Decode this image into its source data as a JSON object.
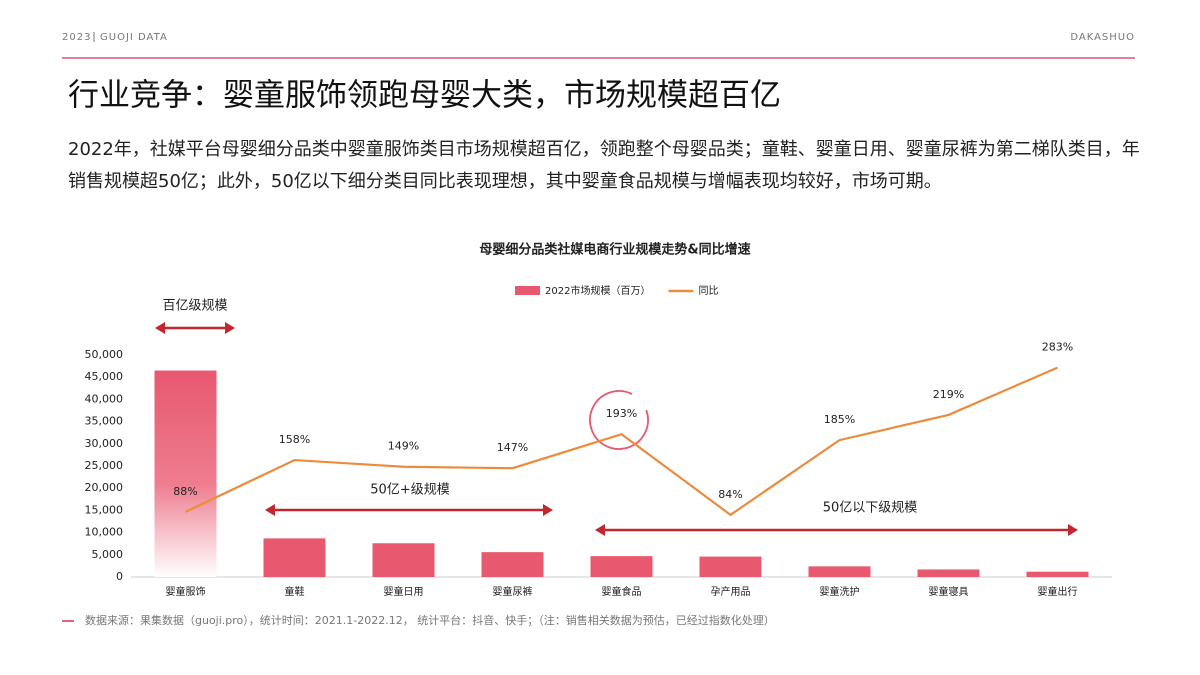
{
  "header": {
    "year": "2023",
    "brand": "GUOJI DATA",
    "author": "DAKASHUO"
  },
  "title": "行业竞争：婴童服饰领跑母婴大类，市场规模超百亿",
  "description": "2022年，社媒平台母婴细分品类中婴童服饰类目市场规模超百亿，领跑整个母婴品类；童鞋、婴童日用、婴童尿裤为第二梯队类目，年销售规模超50亿；此外，50亿以下细分类目同比表现理想，其中婴童食品规模与增幅表现均较好，市场可期。",
  "chart_data": {
    "type": "bar-line",
    "title": "母婴细分品类社媒电商行业规模走势&同比增速",
    "categories": [
      "婴童服饰",
      "童鞋",
      "婴童日用",
      "婴童尿裤",
      "婴童食品",
      "孕产用品",
      "婴童洗护",
      "婴童寝具",
      "婴童出行"
    ],
    "series": [
      {
        "name": "2022市场规模（百万）",
        "type": "bar",
        "color": "#e8586e",
        "values": [
          46500,
          8700,
          7600,
          5600,
          4700,
          4600,
          2400,
          1700,
          1200
        ]
      },
      {
        "name": "同比",
        "type": "line",
        "axis": "y2",
        "color": "#ed8b3c",
        "values": [
          88,
          158,
          149,
          147,
          193,
          84,
          185,
          219,
          283
        ],
        "value_labels": [
          "88%",
          "158%",
          "149%",
          "147%",
          "193%",
          "84%",
          "185%",
          "219%",
          "283%"
        ]
      }
    ],
    "ylim": [
      0,
      50000
    ],
    "yticks": [
      0,
      {
        "value": 5000,
        "label": "5,000"
      },
      {
        "value": 10000,
        "label": "10,000"
      },
      {
        "value": 15000,
        "label": "15,000"
      },
      {
        "value": 20000,
        "label": "20,000"
      },
      {
        "value": 25000,
        "label": "25,000"
      },
      {
        "value": 30000,
        "label": "30,000"
      },
      {
        "value": 35000,
        "label": "35,000"
      },
      {
        "value": 40000,
        "label": "40,000"
      },
      {
        "value": 45000,
        "label": "45,000"
      },
      {
        "value": 50000,
        "label": "50,000"
      }
    ],
    "y2lim": [
      0,
      300
    ],
    "grid": false,
    "legend": "top",
    "annotations": [
      "百亿级规模",
      "50亿+级规模",
      "50亿以下级规模"
    ]
  },
  "source": "数据来源：果集数据（guoji.pro），统计时间：2021.1-2022.12，  统计平台：抖音、快手；（注：销售相关数据为预估，已经过指数化处理）"
}
